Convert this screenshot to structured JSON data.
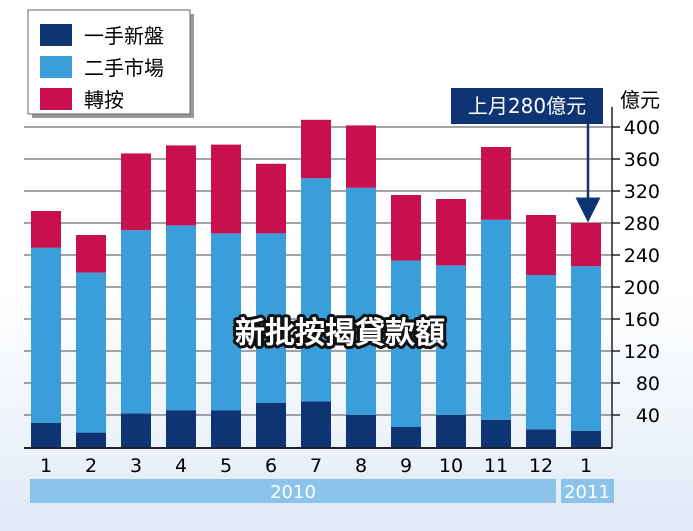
{
  "chart_data": {
    "type": "bar",
    "stacked": true,
    "title": "新批按揭貸款額",
    "ylabel": "億元",
    "ylim": [
      0,
      420
    ],
    "yticks": [
      40,
      80,
      120,
      160,
      200,
      240,
      280,
      320,
      360,
      400
    ],
    "categories": [
      "1",
      "2",
      "3",
      "4",
      "5",
      "6",
      "7",
      "8",
      "9",
      "10",
      "11",
      "12",
      "1"
    ],
    "year_labels": [
      "2010",
      "2011"
    ],
    "series": [
      {
        "name": "一手新盤",
        "color": "#0f3473",
        "values": [
          30,
          18,
          42,
          46,
          46,
          55,
          57,
          40,
          25,
          40,
          34,
          22,
          20
        ]
      },
      {
        "name": "二手市場",
        "color": "#3a9edb",
        "values": [
          219,
          200,
          229,
          231,
          221,
          212,
          279,
          284,
          208,
          187,
          250,
          193,
          206
        ]
      },
      {
        "name": "轉按",
        "color": "#c8104f",
        "values": [
          46,
          47,
          96,
          100,
          111,
          87,
          73,
          78,
          82,
          83,
          91,
          75,
          54
        ]
      }
    ],
    "annotation": {
      "text": "上月280億元",
      "points_to_index": 12
    }
  }
}
